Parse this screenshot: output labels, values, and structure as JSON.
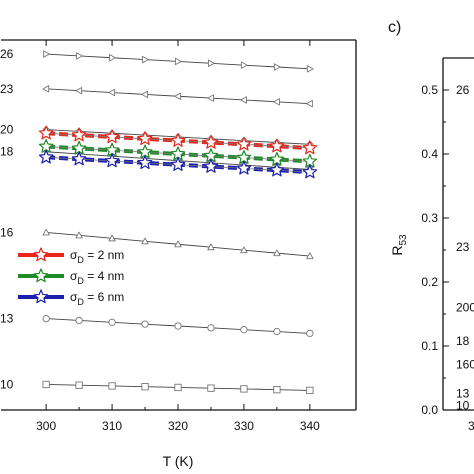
{
  "chart_data": [
    {
      "type": "line",
      "xlabel": "T (K)",
      "ylabel": "",
      "xlim": [
        293,
        347
      ],
      "ylim": [
        0,
        1
      ],
      "x_ticks": [
        300,
        310,
        320,
        330,
        340
      ],
      "x": [
        300,
        305,
        310,
        315,
        320,
        325,
        330,
        335,
        340
      ],
      "series": [
        {
          "name": "",
          "label": "26",
          "marker": "triangle-right",
          "color": "#777777",
          "values": [
            0.962,
            0.957,
            0.952,
            0.947,
            0.942,
            0.937,
            0.932,
            0.927,
            0.922
          ]
        },
        {
          "name": "",
          "label": "23",
          "marker": "triangle-left",
          "color": "#777777",
          "values": [
            0.868,
            0.863,
            0.858,
            0.853,
            0.848,
            0.843,
            0.838,
            0.833,
            0.828
          ]
        },
        {
          "name": "",
          "label": "20",
          "marker": "diamond",
          "color": "#777777",
          "values": [
            0.758,
            0.753,
            0.748,
            0.743,
            0.738,
            0.733,
            0.728,
            0.723,
            0.718
          ]
        },
        {
          "name": "",
          "label": "18",
          "marker": "triangle-down",
          "color": "#777777",
          "values": [
            0.698,
            0.692,
            0.686,
            0.68,
            0.674,
            0.668,
            0.662,
            0.656,
            0.65
          ]
        },
        {
          "name": "",
          "label": "16",
          "marker": "triangle-up",
          "color": "#777777",
          "values": [
            0.48,
            0.472,
            0.464,
            0.456,
            0.448,
            0.44,
            0.432,
            0.424,
            0.416
          ]
        },
        {
          "name": "",
          "label": "13",
          "marker": "circle",
          "color": "#777777",
          "values": [
            0.247,
            0.242,
            0.237,
            0.232,
            0.227,
            0.222,
            0.217,
            0.212,
            0.207
          ]
        },
        {
          "name": "",
          "label": "10",
          "marker": "square",
          "color": "#777777",
          "values": [
            0.069,
            0.067,
            0.065,
            0.063,
            0.061,
            0.059,
            0.057,
            0.055,
            0.053
          ]
        },
        {
          "name": "σD = 2 nm",
          "marker": "star",
          "color": "#e8261c",
          "bold": true,
          "values": [
            0.748,
            0.743,
            0.738,
            0.733,
            0.728,
            0.723,
            0.718,
            0.713,
            0.708
          ]
        },
        {
          "name": "σD = 4 nm",
          "marker": "star",
          "color": "#1f8a28",
          "bold": true,
          "values": [
            0.712,
            0.707,
            0.702,
            0.697,
            0.692,
            0.687,
            0.682,
            0.677,
            0.672
          ]
        },
        {
          "name": "σD = 6 nm",
          "marker": "star",
          "color": "#1b1fb0",
          "bold": true,
          "values": [
            0.683,
            0.678,
            0.673,
            0.668,
            0.663,
            0.658,
            0.653,
            0.648,
            0.643
          ]
        }
      ],
      "legend": {
        "placement": "left-center",
        "entries": [
          {
            "symbol": "σ",
            "sub": "D",
            "rest": " = 2 nm",
            "color": "#e8261c"
          },
          {
            "symbol": "σ",
            "sub": "D",
            "rest": " = 4 nm",
            "color": "#1f8a28"
          },
          {
            "symbol": "σ",
            "sub": "D",
            "rest": " = 6 nm",
            "color": "#1b1fb0"
          }
        ]
      }
    },
    {
      "type": "scatter",
      "panel_label": "c)",
      "ylabel_main": "R",
      "ylabel_sub": "53",
      "ylim": [
        0,
        0.55
      ],
      "y_ticks": [
        "0.0",
        "0.1",
        "0.2",
        "0.3",
        "0.4",
        "0.5"
      ],
      "y_tick_values": [
        0.0,
        0.1,
        0.2,
        0.3,
        0.4,
        0.5
      ],
      "x_tick_partial": "3",
      "point_labels": [
        {
          "text": "26",
          "y": 0.5
        },
        {
          "text": "23",
          "y": 0.255
        },
        {
          "text": "200",
          "y": 0.16
        },
        {
          "text": "18",
          "y": 0.108
        },
        {
          "text": "160",
          "y": 0.071
        },
        {
          "text": "13",
          "y": 0.026
        },
        {
          "text": "10",
          "y": 0.007
        }
      ]
    }
  ]
}
